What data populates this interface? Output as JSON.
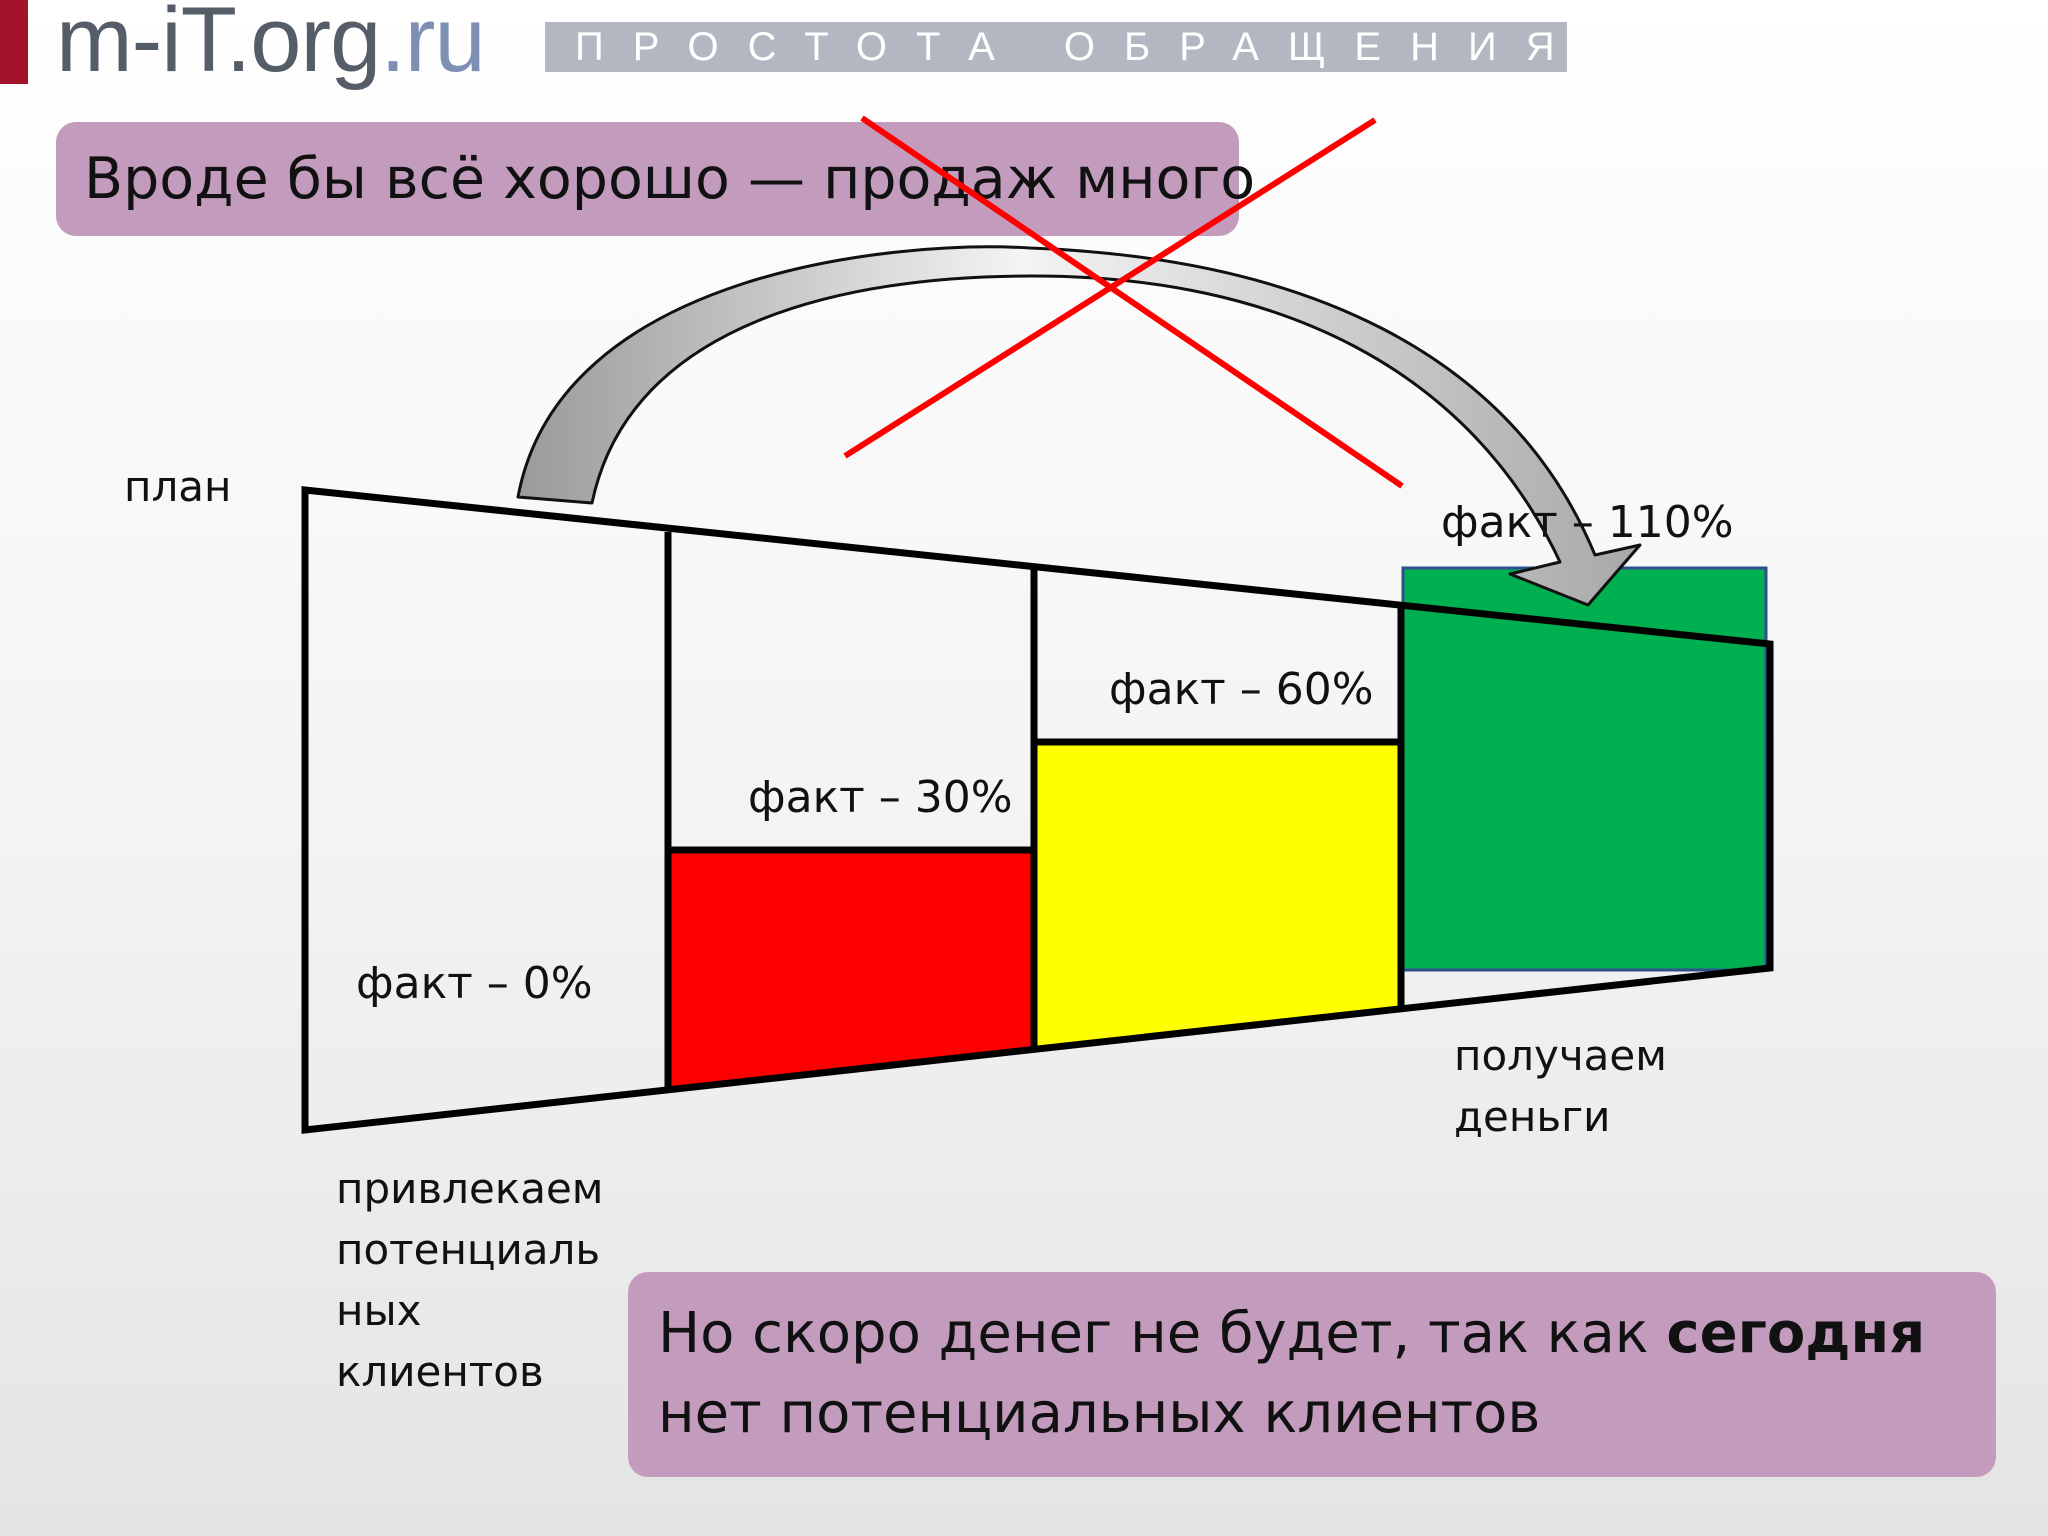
{
  "header": {
    "logo_main": "m-iT.org",
    "logo_suffix": ".ru",
    "tagline": "ПРОСТОТА ОБРАЩЕНИЯ"
  },
  "callouts": {
    "top": "Вроде бы всё хорошо — продаж много",
    "bottom_part1": "Но скоро денег не будет, так как ",
    "bottom_bold": "сегодня",
    "bottom_part2": " нет потенциальных клиентов"
  },
  "diagram": {
    "plan_label": "план",
    "stages": [
      {
        "fact_label": "факт – 0%",
        "fact_percent": 0,
        "fill_color": "#ffffff"
      },
      {
        "fact_label": "факт – 30%",
        "fact_percent": 30,
        "fill_color": "#ff0000"
      },
      {
        "fact_label": "факт – 60%",
        "fact_percent": 60,
        "fill_color": "#ffff00"
      },
      {
        "fact_label": "факт – 110%",
        "fact_percent": 110,
        "fill_color": "#00b050"
      }
    ],
    "left_caption": "привлекаем потенциаль ных клиентов",
    "right_caption": "получаем деньги",
    "cross_color": "#ff0000",
    "arrow_color": "#c0c0c0"
  }
}
